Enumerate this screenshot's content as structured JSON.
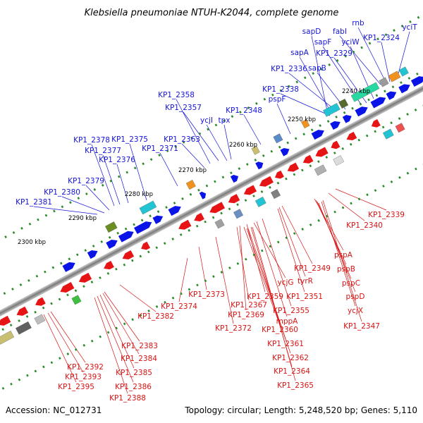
{
  "title": "Klebsiella pneumoniae NTUH-K2044, complete genome",
  "footer": {
    "accession": "Accession: NC_012731",
    "topology": "Topology: circular; Length: 5,248,520 bp; Genes: 5,110"
  },
  "scale_labels": [
    "2240 kbp",
    "2250 kbp",
    "2260 kbp",
    "2270 kbp",
    "2280 kbp",
    "2290 kbp",
    "2300 kbp"
  ],
  "top_labels": [
    "rnb",
    "yciT",
    "fabI",
    "sapD",
    "KP1_2324",
    "sapF",
    "yciW",
    "sapA",
    "KP1_2329",
    "KP1_2336",
    "sapB",
    "KP1_2338",
    "pspF",
    "KP1_2358",
    "KP1_2357",
    "KP1_2348",
    "ycjI",
    "tpx",
    "KP1_2363",
    "KP1_2378",
    "KP1_2375",
    "KP1_2377",
    "KP1_2371",
    "KP1_2376",
    "KP1_2379",
    "KP1_2380",
    "KP1_2381"
  ],
  "bottom_labels": [
    "KP1_2339",
    "KP1_2340",
    "pspA",
    "pspB",
    "pspC",
    "pspD",
    "ycjX",
    "KP1_2347",
    "KP1_2349",
    "tyrR",
    "KP1_2351",
    "ycjG",
    "KP1_2355",
    "mppA",
    "KP1_2359",
    "KP1_2367",
    "KP1_2369",
    "KP1_2360",
    "KP1_2361",
    "KP1_2362",
    "KP1_2364",
    "KP1_2365",
    "KP1_2372",
    "KP1_2373",
    "KP1_2374",
    "KP1_2382",
    "KP1_2383",
    "KP1_2384",
    "KP1_2385",
    "KP1_2386",
    "KP1_2388",
    "KP1_2392",
    "KP1_2393",
    "KP1_2395"
  ],
  "colors": {
    "forward": "#0a14e6",
    "reverse": "#e61414",
    "top_label": "#1414d8",
    "bottom_label": "#d81414",
    "backbone": "#8c8c8c",
    "tick": "#2a8a2a"
  }
}
